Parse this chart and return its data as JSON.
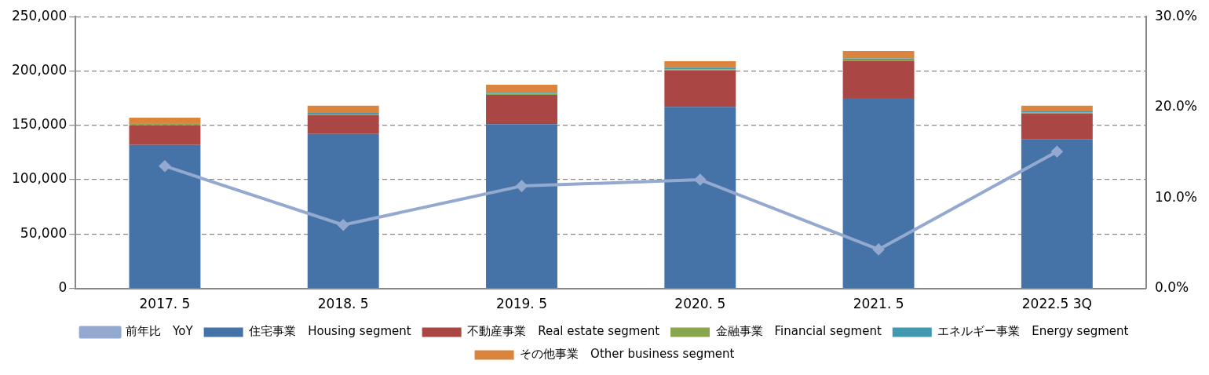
{
  "chart_data": {
    "type": "bar",
    "stacked": true,
    "categories": [
      "2017. 5",
      "2018. 5",
      "2019. 5",
      "2020. 5",
      "2021. 5",
      "2022.5 3Q"
    ],
    "series": [
      {
        "name": "住宅事業　Housing segment",
        "color": "#4573a7",
        "values": [
          132000,
          142000,
          151000,
          167000,
          175000,
          137000
        ]
      },
      {
        "name": "不動産事業　Real estate segment",
        "color": "#aa4644",
        "values": [
          18000,
          17500,
          27000,
          33500,
          34000,
          24000
        ]
      },
      {
        "name": "金融事業　Financial segment",
        "color": "#89a54e",
        "values": [
          1500,
          1200,
          1300,
          1000,
          1500,
          800
        ]
      },
      {
        "name": "エネルギー事業　Energy segment",
        "color": "#4298af",
        "values": [
          500,
          700,
          700,
          1500,
          1000,
          1000
        ]
      },
      {
        "name": "その他事業　Other business segment",
        "color": "#db843d",
        "values": [
          5000,
          6600,
          7300,
          6000,
          6800,
          5200
        ]
      },
      {
        "name": "前年比　YoY",
        "type": "line",
        "axis": "y2",
        "marker": "diamond",
        "color": "#93a9cf",
        "values": [
          13.5,
          7.0,
          11.3,
          12.0,
          4.3,
          15.1
        ]
      }
    ],
    "ylim": [
      0,
      250000
    ],
    "yticks": [
      {
        "value": 0,
        "label": "0"
      },
      {
        "value": 50000,
        "label": "50,000"
      },
      {
        "value": 100000,
        "label": "100,000"
      },
      {
        "value": 150000,
        "label": "150,000"
      },
      {
        "value": 200000,
        "label": "200,000"
      },
      {
        "value": 250000,
        "label": "250,000"
      }
    ],
    "y2lim": [
      0,
      30
    ],
    "y2ticks": [
      {
        "value": 0,
        "label": "0.0%"
      },
      {
        "value": 10,
        "label": "10.0%"
      },
      {
        "value": 20,
        "label": "20.0%"
      },
      {
        "value": 30,
        "label": "30.0%"
      }
    ],
    "grid": "y",
    "legend": "bottom"
  }
}
